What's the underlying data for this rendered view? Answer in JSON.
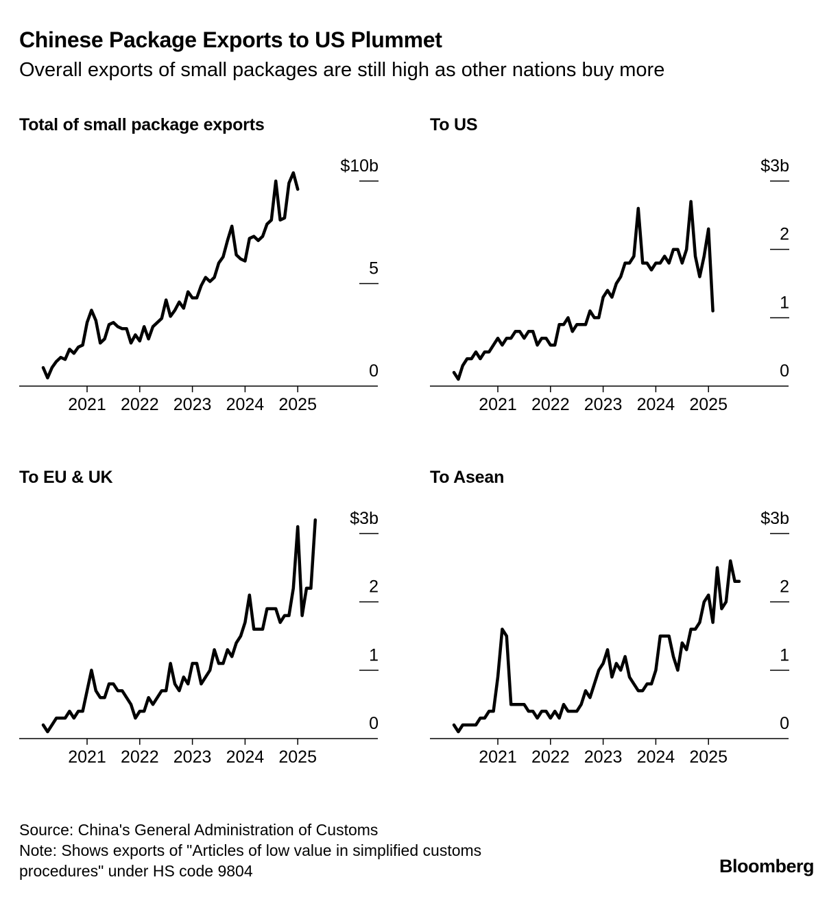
{
  "header": {
    "title": "Chinese Package Exports to US Plummet",
    "subtitle": "Overall exports of small packages are still high as other nations buy more"
  },
  "footer": {
    "source": "Source: China's General Administration of Customs",
    "note_line1": "Note: Shows exports of \"Articles of low value in simplified customs",
    "note_line2": "procedures\" under HS code 9804",
    "brand": "Bloomberg"
  },
  "chart_data": [
    {
      "type": "line",
      "title": "Total of small package exports",
      "x_start": "2020-03",
      "x_interval": "month",
      "x_ticks": [
        "2021",
        "2022",
        "2023",
        "2024",
        "2025"
      ],
      "y_ticks": [
        "0",
        "5",
        "$10b"
      ],
      "ylim": [
        0,
        10
      ],
      "grid": false,
      "series": [
        {
          "values": [
            0.9,
            0.4,
            0.9,
            1.2,
            1.4,
            1.3,
            1.8,
            1.6,
            1.9,
            2.0,
            3.1,
            3.7,
            3.2,
            2.1,
            2.3,
            3.0,
            3.1,
            2.9,
            2.8,
            2.8,
            2.1,
            2.5,
            2.2,
            2.9,
            2.3,
            2.9,
            3.1,
            3.3,
            4.2,
            3.4,
            3.7,
            4.1,
            3.8,
            4.6,
            4.3,
            4.3,
            4.9,
            5.3,
            5.1,
            5.3,
            6.0,
            6.3,
            7.1,
            7.8,
            6.4,
            6.2,
            6.1,
            7.2,
            7.3,
            7.1,
            7.3,
            7.9,
            8.1,
            10.0,
            8.1,
            8.2,
            9.9,
            10.4,
            9.6
          ]
        }
      ]
    },
    {
      "type": "line",
      "title": "To US",
      "x_start": "2020-03",
      "x_interval": "month",
      "x_ticks": [
        "2021",
        "2022",
        "2023",
        "2024",
        "2025"
      ],
      "y_ticks": [
        "0",
        "1",
        "2",
        "$3b"
      ],
      "ylim": [
        0,
        3
      ],
      "grid": false,
      "series": [
        {
          "values": [
            0.2,
            0.1,
            0.3,
            0.4,
            0.4,
            0.5,
            0.4,
            0.5,
            0.5,
            0.6,
            0.7,
            0.6,
            0.7,
            0.7,
            0.8,
            0.8,
            0.7,
            0.8,
            0.8,
            0.6,
            0.7,
            0.7,
            0.6,
            0.6,
            0.9,
            0.9,
            1.0,
            0.8,
            0.9,
            0.9,
            0.9,
            1.1,
            1.0,
            1.0,
            1.3,
            1.4,
            1.3,
            1.5,
            1.6,
            1.8,
            1.8,
            1.9,
            2.6,
            1.8,
            1.8,
            1.7,
            1.8,
            1.8,
            1.9,
            1.8,
            2.0,
            2.0,
            1.8,
            2.0,
            2.7,
            1.9,
            1.6,
            1.9,
            2.3,
            1.1
          ]
        }
      ]
    },
    {
      "type": "line",
      "title": "To EU & UK",
      "x_start": "2020-03",
      "x_interval": "month",
      "x_ticks": [
        "2021",
        "2022",
        "2023",
        "2024",
        "2025"
      ],
      "y_ticks": [
        "0",
        "1",
        "2",
        "$3b"
      ],
      "ylim": [
        0,
        3
      ],
      "grid": false,
      "series": [
        {
          "values": [
            0.2,
            0.1,
            0.2,
            0.3,
            0.3,
            0.3,
            0.4,
            0.3,
            0.4,
            0.4,
            0.7,
            1.0,
            0.7,
            0.6,
            0.6,
            0.8,
            0.8,
            0.7,
            0.7,
            0.6,
            0.5,
            0.3,
            0.4,
            0.4,
            0.6,
            0.5,
            0.6,
            0.7,
            0.7,
            1.1,
            0.8,
            0.7,
            0.9,
            0.8,
            1.1,
            1.1,
            0.8,
            0.9,
            1.0,
            1.3,
            1.1,
            1.1,
            1.3,
            1.2,
            1.4,
            1.5,
            1.7,
            2.1,
            1.6,
            1.6,
            1.6,
            1.9,
            1.9,
            1.9,
            1.7,
            1.8,
            1.8,
            2.2,
            3.1,
            1.8,
            2.2,
            2.2,
            3.2
          ]
        }
      ]
    },
    {
      "type": "line",
      "title": "To Asean",
      "x_start": "2020-03",
      "x_interval": "month",
      "x_ticks": [
        "2021",
        "2022",
        "2023",
        "2024",
        "2025"
      ],
      "y_ticks": [
        "0",
        "1",
        "2",
        "$3b"
      ],
      "ylim": [
        0,
        3
      ],
      "grid": false,
      "series": [
        {
          "values": [
            0.2,
            0.1,
            0.2,
            0.2,
            0.2,
            0.2,
            0.3,
            0.3,
            0.4,
            0.4,
            0.9,
            1.6,
            1.5,
            0.5,
            0.5,
            0.5,
            0.5,
            0.4,
            0.4,
            0.3,
            0.4,
            0.4,
            0.3,
            0.4,
            0.3,
            0.5,
            0.4,
            0.4,
            0.4,
            0.5,
            0.7,
            0.6,
            0.8,
            1.0,
            1.1,
            1.3,
            0.9,
            1.1,
            1.0,
            1.2,
            0.9,
            0.8,
            0.7,
            0.7,
            0.8,
            0.8,
            1.0,
            1.5,
            1.5,
            1.5,
            1.2,
            1.0,
            1.4,
            1.3,
            1.6,
            1.6,
            1.7,
            2.0,
            2.1,
            1.7,
            2.5,
            1.9,
            2.0,
            2.6,
            2.3,
            2.3
          ]
        }
      ]
    }
  ]
}
